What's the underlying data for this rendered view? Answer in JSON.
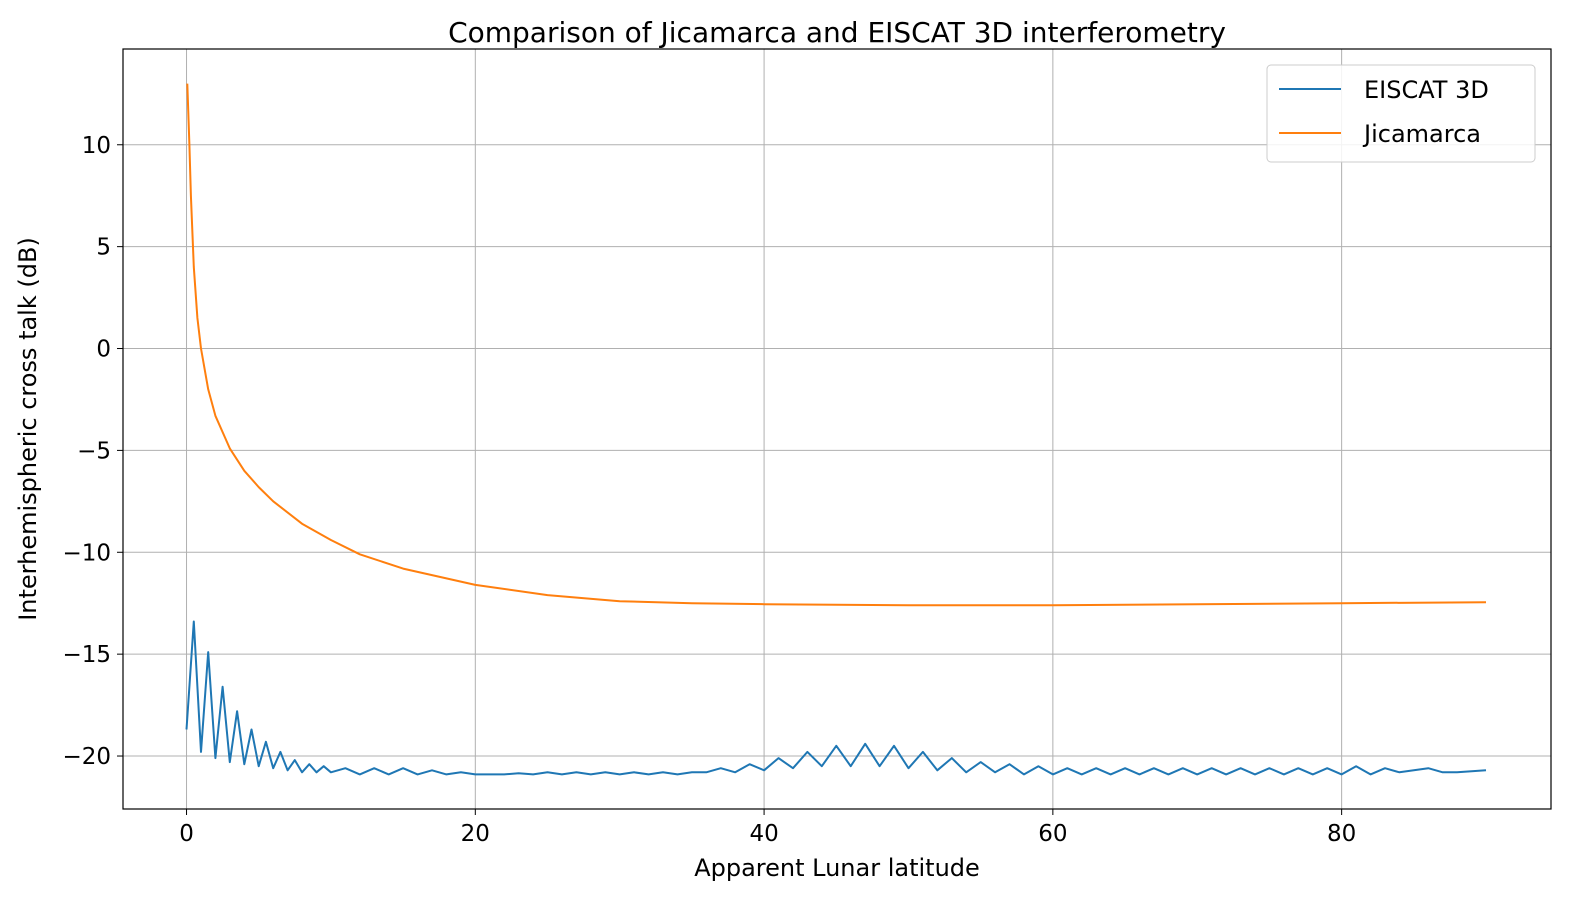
{
  "chart_data": {
    "type": "line",
    "title": "Comparison of Jicamarca and EISCAT 3D interferometry",
    "xlabel": "Apparent Lunar latitude",
    "ylabel": "Interhemispheric cross talk (dB)",
    "xlim": [
      -4.4,
      94.5
    ],
    "ylim": [
      -22.6,
      14.7
    ],
    "xticks": [
      0,
      20,
      40,
      60,
      80
    ],
    "xtick_labels": [
      "0",
      "20",
      "40",
      "60",
      "80"
    ],
    "yticks": [
      10,
      5,
      0,
      -5,
      -10,
      -15,
      -20
    ],
    "ytick_labels": [
      "10",
      "5",
      "0",
      "−5",
      "−10",
      "−15",
      "−20"
    ],
    "grid": true,
    "legend_position": "top-right",
    "series": [
      {
        "name": "EISCAT 3D",
        "color": "#1f77b4",
        "x": [
          0,
          0.5,
          1,
          1.5,
          2,
          2.5,
          3,
          3.5,
          4,
          4.5,
          5,
          5.5,
          6,
          6.5,
          7,
          7.5,
          8,
          8.5,
          9,
          9.5,
          10,
          11,
          12,
          13,
          14,
          15,
          16,
          17,
          18,
          19,
          20,
          21,
          22,
          23,
          24,
          25,
          26,
          27,
          28,
          29,
          30,
          31,
          32,
          33,
          34,
          35,
          36,
          37,
          38,
          39,
          40,
          41,
          42,
          43,
          44,
          45,
          46,
          47,
          48,
          49,
          50,
          51,
          52,
          53,
          54,
          55,
          56,
          57,
          58,
          59,
          60,
          61,
          62,
          63,
          64,
          65,
          66,
          67,
          68,
          69,
          70,
          71,
          72,
          73,
          74,
          75,
          76,
          77,
          78,
          79,
          80,
          81,
          82,
          83,
          84,
          85,
          86,
          87,
          88,
          89,
          90
        ],
        "y": [
          -18.7,
          -13.4,
          -19.8,
          -14.9,
          -20.1,
          -16.6,
          -20.3,
          -17.8,
          -20.4,
          -18.7,
          -20.5,
          -19.3,
          -20.6,
          -19.8,
          -20.7,
          -20.2,
          -20.8,
          -20.4,
          -20.8,
          -20.5,
          -20.8,
          -20.6,
          -20.9,
          -20.6,
          -20.9,
          -20.6,
          -20.9,
          -20.7,
          -20.9,
          -20.8,
          -20.9,
          -20.9,
          -20.9,
          -20.85,
          -20.9,
          -20.8,
          -20.9,
          -20.8,
          -20.9,
          -20.8,
          -20.9,
          -20.8,
          -20.9,
          -20.8,
          -20.9,
          -20.8,
          -20.8,
          -20.6,
          -20.8,
          -20.4,
          -20.7,
          -20.1,
          -20.6,
          -19.8,
          -20.5,
          -19.5,
          -20.5,
          -19.4,
          -20.5,
          -19.5,
          -20.6,
          -19.8,
          -20.7,
          -20.1,
          -20.8,
          -20.3,
          -20.8,
          -20.4,
          -20.9,
          -20.5,
          -20.9,
          -20.6,
          -20.9,
          -20.6,
          -20.9,
          -20.6,
          -20.9,
          -20.6,
          -20.9,
          -20.6,
          -20.9,
          -20.6,
          -20.9,
          -20.6,
          -20.9,
          -20.6,
          -20.9,
          -20.6,
          -20.9,
          -20.6,
          -20.9,
          -20.5,
          -20.9,
          -20.6,
          -20.8,
          -20.7,
          -20.6,
          -20.8,
          -20.8,
          -20.75,
          -20.7
        ]
      },
      {
        "name": "Jicamarca",
        "color": "#ff7f0e",
        "x": [
          0.05,
          0.2,
          0.3,
          0.5,
          0.75,
          1,
          1.5,
          2,
          3,
          4,
          5,
          6,
          8,
          10,
          12,
          15,
          20,
          25,
          30,
          35,
          40,
          50,
          60,
          70,
          80,
          90
        ],
        "y": [
          13,
          10,
          7.5,
          4,
          1.5,
          0,
          -2,
          -3.3,
          -4.9,
          -6,
          -6.8,
          -7.5,
          -8.6,
          -9.4,
          -10.1,
          -10.8,
          -11.6,
          -12.1,
          -12.4,
          -12.5,
          -12.55,
          -12.6,
          -12.6,
          -12.55,
          -12.5,
          -12.45
        ]
      }
    ]
  }
}
